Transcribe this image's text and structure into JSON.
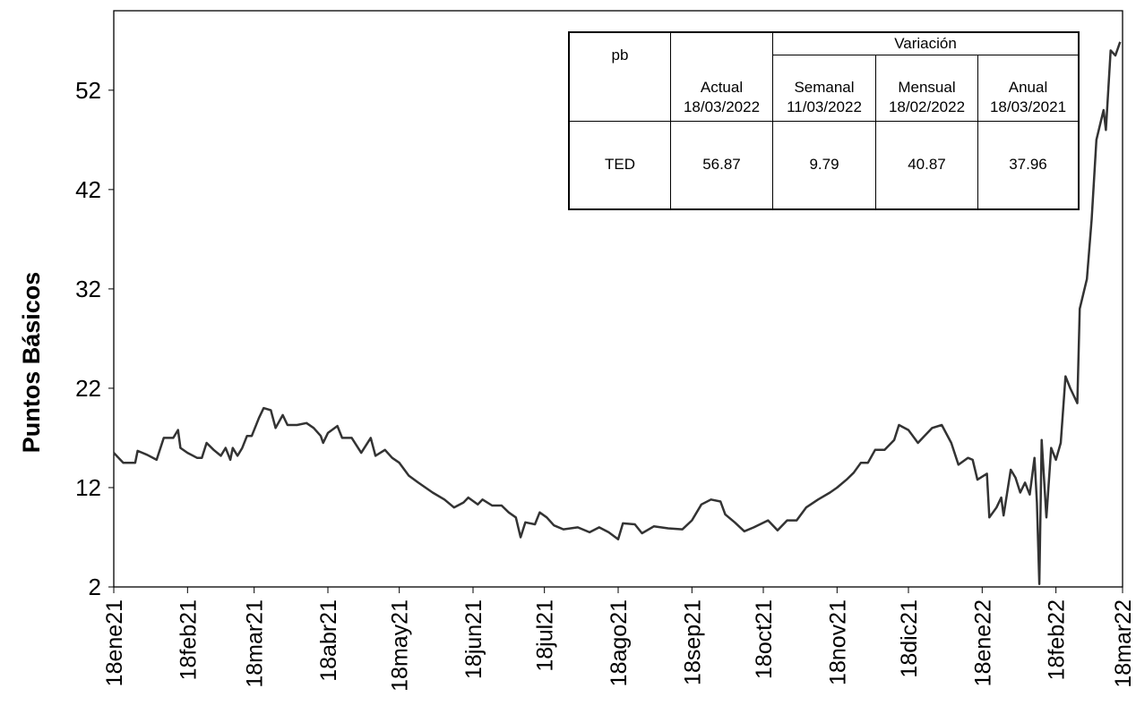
{
  "chart_data": {
    "type": "line",
    "ylabel": "Puntos Básicos",
    "color": "#333333",
    "ylim": [
      2,
      60
    ],
    "yticks": [
      2,
      12,
      22,
      32,
      42,
      52
    ],
    "xlim": [
      "2021-01-18",
      "2022-03-18"
    ],
    "xticks": [
      {
        "value": "2021-01-18",
        "label": "18ene21"
      },
      {
        "value": "2021-02-18",
        "label": "18feb21"
      },
      {
        "value": "2021-03-18",
        "label": "18mar21"
      },
      {
        "value": "2021-04-18",
        "label": "18abr21"
      },
      {
        "value": "2021-05-18",
        "label": "18may21"
      },
      {
        "value": "2021-06-18",
        "label": "18jun21"
      },
      {
        "value": "2021-07-18",
        "label": "18jul21"
      },
      {
        "value": "2021-08-18",
        "label": "18ago21"
      },
      {
        "value": "2021-09-18",
        "label": "18sep21"
      },
      {
        "value": "2021-10-18",
        "label": "18oct21"
      },
      {
        "value": "2021-11-18",
        "label": "18nov21"
      },
      {
        "value": "2021-12-18",
        "label": "18dic21"
      },
      {
        "value": "2022-01-18",
        "label": "18ene22"
      },
      {
        "value": "2022-02-18",
        "label": "18feb22"
      },
      {
        "value": "2022-03-18",
        "label": "18mar22"
      }
    ],
    "grid": false,
    "x": [
      "2021-01-18",
      "2021-01-20",
      "2021-01-22",
      "2021-01-27",
      "2021-01-28",
      "2021-02-01",
      "2021-02-05",
      "2021-02-08",
      "2021-02-12",
      "2021-02-14",
      "2021-02-15",
      "2021-02-18",
      "2021-02-22",
      "2021-02-24",
      "2021-02-26",
      "2021-03-01",
      "2021-03-04",
      "2021-03-06",
      "2021-03-08",
      "2021-03-09",
      "2021-03-11",
      "2021-03-13",
      "2021-03-15",
      "2021-03-17",
      "2021-03-20",
      "2021-03-22",
      "2021-03-25",
      "2021-03-27",
      "2021-03-30",
      "2021-04-01",
      "2021-04-05",
      "2021-04-09",
      "2021-04-12",
      "2021-04-15",
      "2021-04-16",
      "2021-04-18",
      "2021-04-22",
      "2021-04-24",
      "2021-04-28",
      "2021-05-02",
      "2021-05-06",
      "2021-05-08",
      "2021-05-12",
      "2021-05-15",
      "2021-05-18",
      "2021-05-22",
      "2021-05-26",
      "2021-06-01",
      "2021-06-06",
      "2021-06-10",
      "2021-06-14",
      "2021-06-16",
      "2021-06-20",
      "2021-06-22",
      "2021-06-26",
      "2021-06-30",
      "2021-07-03",
      "2021-07-06",
      "2021-07-08",
      "2021-07-10",
      "2021-07-14",
      "2021-07-16",
      "2021-07-19",
      "2021-07-22",
      "2021-07-26",
      "2021-08-01",
      "2021-08-06",
      "2021-08-10",
      "2021-08-14",
      "2021-08-18",
      "2021-08-20",
      "2021-08-25",
      "2021-08-28",
      "2021-09-02",
      "2021-09-08",
      "2021-09-14",
      "2021-09-18",
      "2021-09-22",
      "2021-09-26",
      "2021-09-30",
      "2021-10-02",
      "2021-10-06",
      "2021-10-10",
      "2021-10-14",
      "2021-10-20",
      "2021-10-24",
      "2021-10-28",
      "2021-11-01",
      "2021-11-05",
      "2021-11-10",
      "2021-11-15",
      "2021-11-18",
      "2021-11-22",
      "2021-11-25",
      "2021-11-28",
      "2021-12-01",
      "2021-12-04",
      "2021-12-08",
      "2021-12-12",
      "2021-12-14",
      "2021-12-18",
      "2021-12-22",
      "2021-12-24",
      "2021-12-28",
      "2022-01-01",
      "2022-01-05",
      "2022-01-08",
      "2022-01-12",
      "2022-01-14",
      "2022-01-16",
      "2022-01-20",
      "2022-01-21",
      "2022-01-24",
      "2022-01-26",
      "2022-01-27",
      "2022-01-30",
      "2022-02-01",
      "2022-02-03",
      "2022-02-05",
      "2022-02-07",
      "2022-02-09",
      "2022-02-10",
      "2022-02-11",
      "2022-02-12",
      "2022-02-14",
      "2022-02-16",
      "2022-02-18",
      "2022-02-20",
      "2022-02-22",
      "2022-02-24",
      "2022-02-27",
      "2022-02-28",
      "2022-03-03",
      "2022-03-05",
      "2022-03-07",
      "2022-03-10",
      "2022-03-11",
      "2022-03-13",
      "2022-03-15",
      "2022-03-17"
    ],
    "values": [
      15.5,
      15,
      14.5,
      14.5,
      15.7,
      15.3,
      14.8,
      17,
      17,
      17.8,
      16,
      15.5,
      15,
      15,
      16.5,
      15.8,
      15.2,
      16,
      14.8,
      16,
      15.2,
      16,
      17.2,
      17.2,
      19,
      20,
      19.8,
      18,
      19.3,
      18.3,
      18.3,
      18.5,
      18,
      17.2,
      16.5,
      17.5,
      18.2,
      17,
      17,
      15.5,
      17,
      15.2,
      15.8,
      15,
      14.5,
      13.2,
      12.5,
      11.5,
      10.8,
      10,
      10.5,
      11,
      10.3,
      10.8,
      10.2,
      10.2,
      9.5,
      9,
      7,
      8.5,
      8.3,
      9.5,
      9,
      8.2,
      7.8,
      8,
      7.5,
      8,
      7.5,
      6.8,
      8.4,
      8.3,
      7.4,
      8.1,
      7.9,
      7.8,
      8.7,
      10.3,
      10.8,
      10.6,
      9.3,
      8.5,
      7.6,
      8,
      8.7,
      7.7,
      8.7,
      8.7,
      10,
      10.8,
      11.5,
      12,
      12.8,
      13.5,
      14.5,
      14.5,
      15.8,
      15.8,
      16.8,
      18.3,
      17.8,
      16.5,
      17,
      18,
      18.3,
      16.5,
      14.3,
      15,
      14.8,
      12.8,
      13.4,
      9,
      10,
      11,
      9.2,
      13.8,
      13,
      11.5,
      12.5,
      11.3,
      15,
      10.5,
      2.3,
      16.8,
      9,
      16,
      14.8,
      16.5,
      23.2,
      22,
      20.5,
      30,
      33,
      39,
      47,
      50,
      48,
      56,
      55.5,
      56.87
    ]
  },
  "table": {
    "header": {
      "pb": "pb",
      "actual": [
        "Actual",
        "18/03/2022"
      ],
      "group": "Variación",
      "columns": [
        [
          "Semanal",
          "11/03/2022"
        ],
        [
          "Mensual",
          "18/02/2022"
        ],
        [
          "Anual",
          "18/03/2021"
        ]
      ]
    },
    "rows": [
      [
        "TED",
        "56.87",
        "9.79",
        "40.87",
        "37.96"
      ]
    ]
  }
}
